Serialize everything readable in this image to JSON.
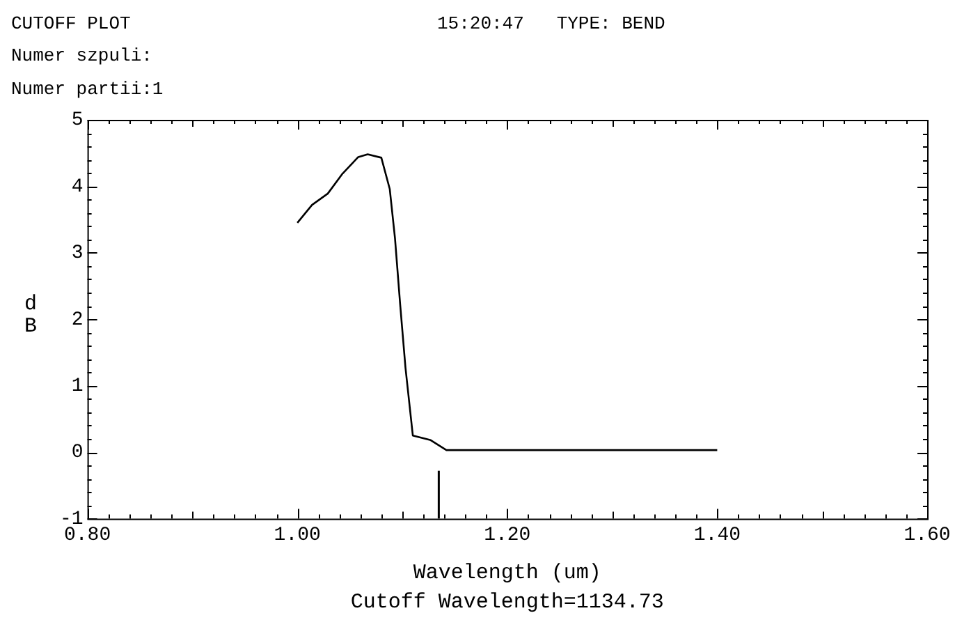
{
  "chart_data": {
    "type": "line",
    "title": "CUTOFF PLOT",
    "subtitle": "15:20:47   TYPE: BEND",
    "xlabel": "Wavelength (um)",
    "ylabel": "dB",
    "annotations": [
      "Numer szpuli:",
      "Numer partii:1",
      "Cutoff Wavelength=1134.73"
    ],
    "x": [
      1.0,
      1.014,
      1.029,
      1.043,
      1.058,
      1.067,
      1.08,
      1.088,
      1.093,
      1.098,
      1.103,
      1.11,
      1.127,
      1.142,
      1.4
    ],
    "series": [
      {
        "color": "#000000",
        "values": [
          3.45,
          3.72,
          3.89,
          4.19,
          4.44,
          4.48,
          4.43,
          3.96,
          3.22,
          2.21,
          1.27,
          0.25,
          0.18,
          0.03,
          0.03
        ]
      }
    ],
    "xlim": [
      0.8,
      1.6
    ],
    "xticks": [
      {
        "value": 0.8,
        "label": "0.80"
      },
      {
        "value": 1.0,
        "label": "1.00"
      },
      {
        "value": 1.2,
        "label": "1.20"
      },
      {
        "value": 1.4,
        "label": "1.40"
      },
      {
        "value": 1.6,
        "label": "1.60"
      }
    ],
    "ylim": [
      -1,
      5
    ],
    "yticks": [
      -1,
      0,
      1,
      2,
      3,
      4,
      5
    ],
    "ref_lines": [
      {
        "axis": "x",
        "value": 1.13473,
        "color": "#000000"
      }
    ],
    "grid": false,
    "legend": false,
    "marker": "none",
    "line_style": "solid"
  }
}
